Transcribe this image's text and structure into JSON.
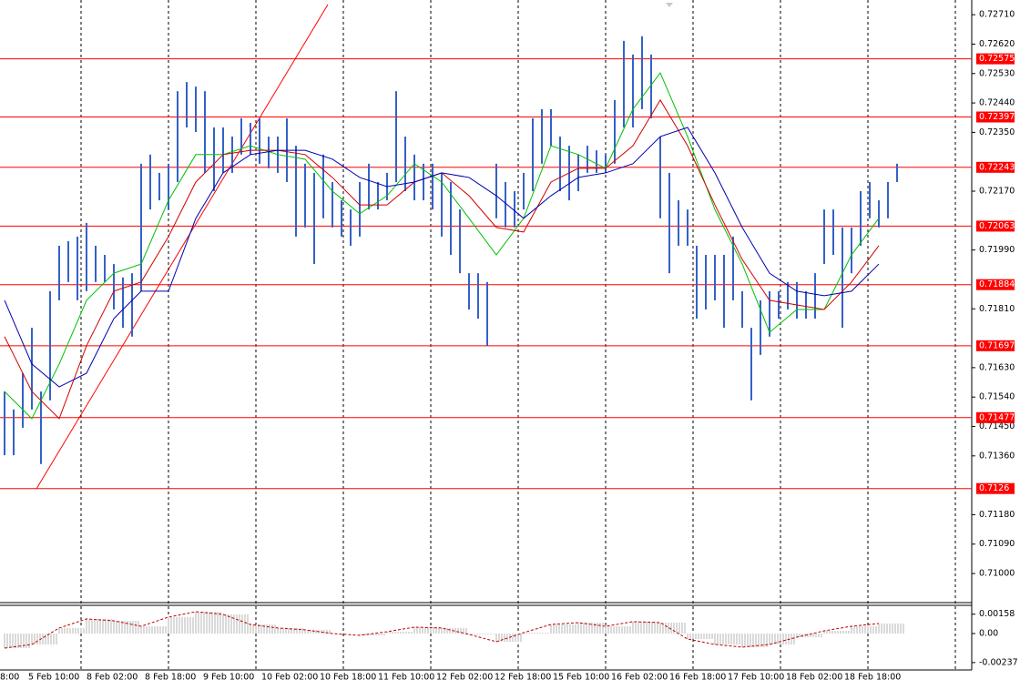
{
  "chart_data": {
    "type": "ohlc",
    "color": "#3561c8",
    "high": [
      0.71557,
      0.71502,
      0.71613,
      0.71752,
      0.71557,
      0.71864,
      0.72003,
      0.72017,
      0.72031,
      0.72073,
      0.72003,
      0.71975,
      0.71947,
      0.71906,
      0.71919,
      0.72254,
      0.72282,
      0.72226,
      0.72254,
      0.72476,
      0.72504,
      0.7249,
      0.72476,
      0.72365,
      0.72365,
      0.72337,
      0.72393,
      0.72379,
      0.72393,
      0.72337,
      0.72337,
      0.72393,
      0.72309,
      0.72254,
      0.72226,
      0.72282,
      0.72198,
      0.72142,
      0.72114,
      0.72198,
      0.72254,
      0.72198,
      0.72226,
      0.72476,
      0.72337,
      0.72282,
      0.72254,
      0.72254,
      0.72226,
      0.72198,
      0.72114,
      0.71919,
      0.71919,
      0.71892,
      0.72254,
      0.72198,
      0.7217,
      0.72226,
      0.72393,
      0.72421,
      0.72421,
      0.72337,
      0.72309,
      0.72282,
      0.72309,
      0.72295,
      0.72282,
      0.72449,
      0.7263,
      0.72588,
      0.72644,
      0.72588,
      0.72337,
      0.72226,
      0.72142,
      0.72114,
      0.72003,
      0.71975,
      0.71975,
      0.71975,
      0.72031,
      0.71864,
      0.71752,
      0.71836,
      0.71864,
      0.71864,
      0.71892,
      0.71892,
      0.71864,
      0.71919,
      0.72114,
      0.72114,
      0.72059,
      0.72059,
      0.7217,
      0.72198,
      0.72142,
      0.72198,
      0.72254
    ],
    "low": [
      0.71362,
      0.71362,
      0.71446,
      0.71502,
      0.71335,
      0.7153,
      0.71836,
      0.71892,
      0.71836,
      0.71864,
      0.71892,
      0.71892,
      0.71808,
      0.71752,
      0.71725,
      0.71864,
      0.72114,
      0.72142,
      0.72114,
      0.72198,
      0.72365,
      0.72351,
      0.72226,
      0.7217,
      0.72226,
      0.72226,
      0.72282,
      0.72282,
      0.72254,
      0.7224,
      0.72226,
      0.72198,
      0.72031,
      0.72059,
      0.71947,
      0.72087,
      0.72059,
      0.72031,
      0.72003,
      0.72031,
      0.72114,
      0.72114,
      0.72142,
      0.72198,
      0.7217,
      0.72142,
      0.72142,
      0.72114,
      0.72031,
      0.71975,
      0.71919,
      0.71808,
      0.7178,
      0.71697,
      0.72087,
      0.72059,
      0.72059,
      0.72114,
      0.7217,
      0.72254,
      0.72309,
      0.7217,
      0.72142,
      0.7217,
      0.72226,
      0.72226,
      0.72226,
      0.72254,
      0.72365,
      0.72365,
      0.72421,
      0.72393,
      0.72087,
      0.71919,
      0.72003,
      0.72003,
      0.7178,
      0.71808,
      0.71836,
      0.71752,
      0.71836,
      0.71752,
      0.7153,
      0.71669,
      0.71725,
      0.7178,
      0.71808,
      0.7178,
      0.7178,
      0.7178,
      0.71947,
      0.71975,
      0.71752,
      0.71919,
      0.72003,
      0.72087,
      0.72059,
      0.72087,
      0.72198
    ],
    "moving_averages": [
      {
        "color": "#00c000",
        "values": [
          0.71557,
          0.71474,
          0.71641,
          0.71836,
          0.71919,
          0.71947,
          0.72142,
          0.72282,
          0.72282,
          0.72309,
          0.72282,
          0.72268,
          0.7217,
          0.72101,
          0.72156,
          0.72254,
          0.72198,
          0.72087,
          0.71975,
          0.72087,
          0.72309,
          0.72282,
          0.7224,
          0.72421,
          0.72532,
          0.72337,
          0.72114,
          0.71947,
          0.71738,
          0.71808,
          0.71808,
          0.71975,
          0.72087
        ]
      },
      {
        "color": "#d00000",
        "values": [
          0.71725,
          0.71557,
          0.71474,
          0.71697,
          0.71864,
          0.71892,
          0.72031,
          0.72198,
          0.72282,
          0.72295,
          0.72295,
          0.72282,
          0.72212,
          0.72128,
          0.72128,
          0.72198,
          0.72226,
          0.72156,
          0.72059,
          0.72045,
          0.72198,
          0.7224,
          0.7224,
          0.72309,
          0.72449,
          0.72309,
          0.72128,
          0.71961,
          0.71836,
          0.71822,
          0.71808,
          0.71892,
          0.72003
        ]
      },
      {
        "color": "#0000b0",
        "values": [
          0.71836,
          0.71641,
          0.71571,
          0.71613,
          0.7178,
          0.71864,
          0.71864,
          0.72087,
          0.72226,
          0.72282,
          0.72295,
          0.72295,
          0.72268,
          0.72212,
          0.72184,
          0.72198,
          0.72226,
          0.72212,
          0.72156,
          0.72087,
          0.72156,
          0.72212,
          0.72226,
          0.72254,
          0.72337,
          0.72365,
          0.72226,
          0.72059,
          0.71919,
          0.71864,
          0.7185,
          0.71864,
          0.71947
        ]
      }
    ],
    "ylim": [
      0.70911,
      0.72755
    ],
    "yticks": [
      {
        "value": 0.7271,
        "label": "0.72710"
      },
      {
        "value": 0.7262,
        "label": "0.72620"
      },
      {
        "value": 0.7253,
        "label": "0.72530"
      },
      {
        "value": 0.7244,
        "label": "0.72440"
      },
      {
        "value": 0.7235,
        "label": "0.72350"
      },
      {
        "value": 0.7217,
        "label": "0.72170"
      },
      {
        "value": 0.7199,
        "label": "0.71990"
      },
      {
        "value": 0.7181,
        "label": "0.71810"
      },
      {
        "value": 0.7163,
        "label": "0.71630"
      },
      {
        "value": 0.7154,
        "label": "0.71540"
      },
      {
        "value": 0.7145,
        "label": "0.71450"
      },
      {
        "value": 0.7136,
        "label": "0.71360"
      },
      {
        "value": 0.7118,
        "label": "0.71180"
      },
      {
        "value": 0.7109,
        "label": "0.71090"
      },
      {
        "value": 0.71,
        "label": "0.71000"
      }
    ],
    "levels": [
      0.72575,
      0.72397,
      0.72243,
      0.72063,
      0.71884,
      0.71697,
      0.71477,
      0.7126
    ],
    "level_color": "#ff0000",
    "categories": [
      "8:00",
      "5 Feb 10:00",
      "8 Feb 02:00",
      "8 Feb 18:00",
      "9 Feb 10:00",
      "10 Feb 02:00",
      "10 Feb 18:00",
      "11 Feb 10:00",
      "12 Feb 02:00",
      "12 Feb 18:00",
      "15 Feb 10:00",
      "16 Feb 02:00",
      "16 Feb 18:00",
      "17 Feb 10:00",
      "18 Feb 02:00",
      "18 Feb 18:00"
    ],
    "oscillator": {
      "color": "#c00000",
      "histogram_color": "#b4b4b4",
      "values": [
        -0.00119,
        -0.00089,
        0.00045,
        0.00119,
        0.00104,
        0.00059,
        0.00134,
        0.00178,
        0.00156,
        0.00074,
        0.00045,
        0.0003,
        0,
        -0.00015,
        0.00015,
        0.00052,
        0.00045,
        -7e-05,
        -0.00067,
        7e-05,
        0.00074,
        0.00089,
        0.00059,
        0.00097,
        0.00089,
        -0.00045,
        -0.00089,
        -0.00111,
        -0.00089,
        -0.0003,
        0.00022,
        0.00059,
        0.00082
      ],
      "ylim": [
        -0.0029,
        0.0023
      ],
      "yticks": [
        0.00158,
        {
          "value": 0,
          "label": "0.00"
        },
        -0.00237
      ]
    }
  }
}
